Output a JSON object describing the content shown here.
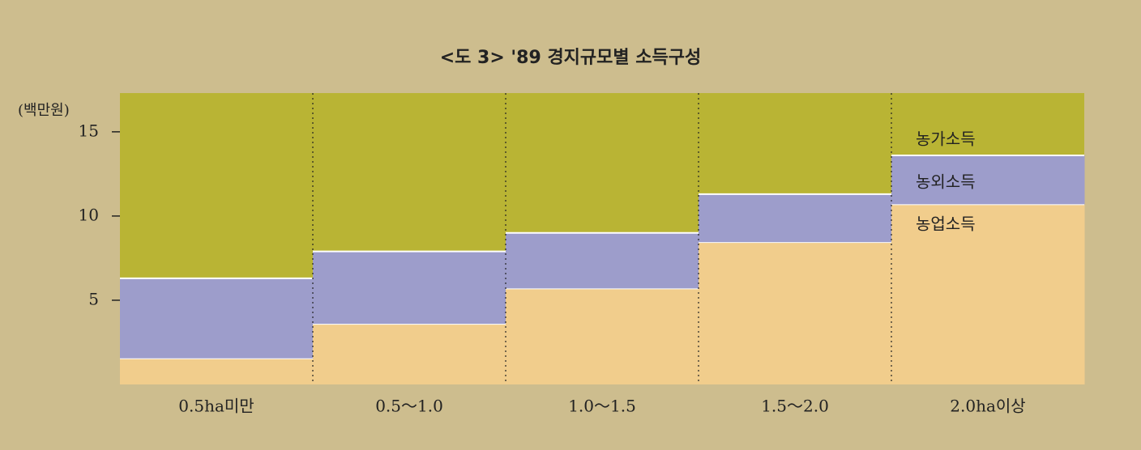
{
  "chart_data": {
    "type": "stacked-step-area",
    "title": "<도 3>  '89 경지규모별 소득구성",
    "y_unit": "(백만원)",
    "categories": [
      "0.5ha미만",
      "0.5～1.0",
      "1.0～1.5",
      "1.5～2.0",
      "2.0ha이상"
    ],
    "series": [
      {
        "name": "농업소득",
        "color": "#f1cd8c",
        "values": [
          1.55,
          3.6,
          5.7,
          8.45,
          10.7
        ]
      },
      {
        "name": "농외소득",
        "color": "#9d9dcb",
        "values": [
          4.75,
          4.3,
          3.3,
          2.85,
          2.9
        ]
      }
    ],
    "plot_label": "농가소득",
    "plot_color": "#b9b434",
    "ylim": [
      0,
      17.3
    ],
    "yticks": [
      5,
      10,
      15
    ]
  }
}
